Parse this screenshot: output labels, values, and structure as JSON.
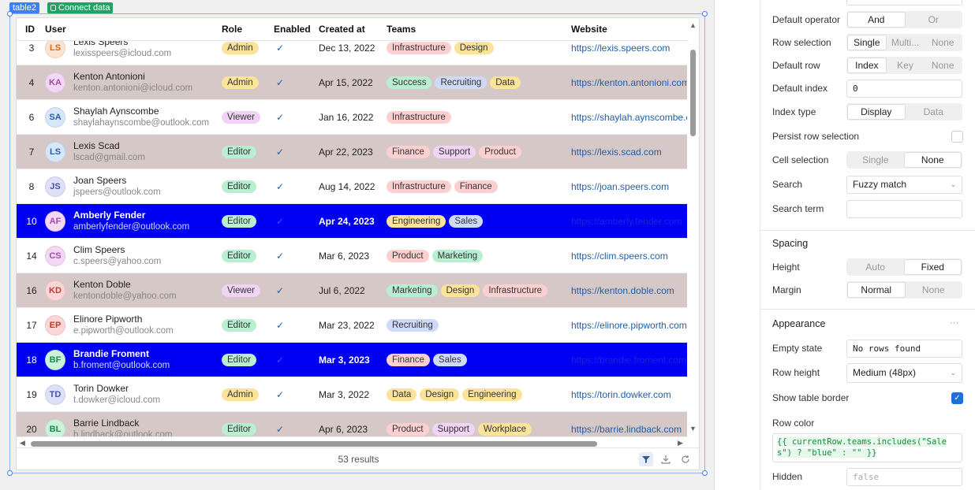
{
  "canvas": {
    "component_name": "table2",
    "connect_label": "Connect data",
    "table": {
      "columns": [
        "ID",
        "User",
        "Role",
        "Enabled",
        "Created at",
        "Teams",
        "Website"
      ],
      "rows": [
        {
          "id": "3",
          "initials": "LS",
          "avatar_color": "#fbe3cf",
          "avatar_text": "#d2691e",
          "name": "Lexis Speers",
          "email": "lexisspeers@icloud.com",
          "role": "Admin",
          "enabled": true,
          "created": "Dec 13, 2022",
          "teams": [
            "Infrastructure",
            "Design"
          ],
          "website": "https://lexis.speers.com",
          "row_style": "white"
        },
        {
          "id": "4",
          "initials": "KA",
          "avatar_color": "#f3d7f5",
          "avatar_text": "#a44aa8",
          "name": "Kenton Antonioni",
          "email": "kenton.antonioni@icloud.com",
          "role": "Admin",
          "enabled": true,
          "created": "Apr 15, 2022",
          "teams": [
            "Success",
            "Recruiting",
            "Data"
          ],
          "website": "https://kenton.antonioni.com",
          "row_style": "brown"
        },
        {
          "id": "6",
          "initials": "SA",
          "avatar_color": "#d6e6fb",
          "avatar_text": "#2a5ea8",
          "name": "Shaylah Aynscombe",
          "email": "shaylahaynscombe@outlook.com",
          "role": "Viewer",
          "enabled": true,
          "created": "Jan 16, 2022",
          "teams": [
            "Infrastructure"
          ],
          "website": "https://shaylah.aynscombe.com",
          "row_style": "white"
        },
        {
          "id": "7",
          "initials": "LS",
          "avatar_color": "#d6e6fb",
          "avatar_text": "#2a5ea8",
          "name": "Lexis Scad",
          "email": "lscad@gmail.com",
          "role": "Editor",
          "enabled": true,
          "created": "Apr 22, 2023",
          "teams": [
            "Finance",
            "Support",
            "Product"
          ],
          "website": "https://lexis.scad.com",
          "row_style": "brown"
        },
        {
          "id": "8",
          "initials": "JS",
          "avatar_color": "#dde0f7",
          "avatar_text": "#4a52a8",
          "name": "Joan Speers",
          "email": "jspeers@outlook.com",
          "role": "Editor",
          "enabled": true,
          "created": "Aug 14, 2022",
          "teams": [
            "Infrastructure",
            "Finance"
          ],
          "website": "https://joan.speers.com",
          "row_style": "white"
        },
        {
          "id": "10",
          "initials": "AF",
          "avatar_color": "#f3d7f5",
          "avatar_text": "#a44aa8",
          "name": "Amberly Fender",
          "email": "amberlyfender@outlook.com",
          "role": "Editor",
          "enabled": true,
          "created": "Apr 24, 2023",
          "teams": [
            "Engineering",
            "Sales"
          ],
          "website": "https://amberly.fender.com",
          "row_style": "blue"
        },
        {
          "id": "14",
          "initials": "CS",
          "avatar_color": "#f3d7f5",
          "avatar_text": "#a44aa8",
          "name": "Clim Speers",
          "email": "c.speers@yahoo.com",
          "role": "Editor",
          "enabled": true,
          "created": "Mar 6, 2023",
          "teams": [
            "Product",
            "Marketing"
          ],
          "website": "https://clim.speers.com",
          "row_style": "white"
        },
        {
          "id": "16",
          "initials": "KD",
          "avatar_color": "#fbd6d6",
          "avatar_text": "#c0392b",
          "name": "Kenton Doble",
          "email": "kentondoble@yahoo.com",
          "role": "Viewer",
          "enabled": true,
          "created": "Jul 6, 2022",
          "teams": [
            "Marketing",
            "Design",
            "Infrastructure"
          ],
          "website": "https://kenton.doble.com",
          "row_style": "brown"
        },
        {
          "id": "17",
          "initials": "EP",
          "avatar_color": "#fbd6d6",
          "avatar_text": "#c0392b",
          "name": "Elinore Pipworth",
          "email": "e.pipworth@outlook.com",
          "role": "Editor",
          "enabled": true,
          "created": "Mar 23, 2022",
          "teams": [
            "Recruiting"
          ],
          "website": "https://elinore.pipworth.com",
          "row_style": "white"
        },
        {
          "id": "18",
          "initials": "BF",
          "avatar_color": "#ccf2dc",
          "avatar_text": "#1e8a4c",
          "name": "Brandie Froment",
          "email": "b.froment@outlook.com",
          "role": "Editor",
          "enabled": true,
          "created": "Mar 3, 2023",
          "teams": [
            "Finance",
            "Sales"
          ],
          "website": "https://brandie.froment.com",
          "row_style": "blue"
        },
        {
          "id": "19",
          "initials": "TD",
          "avatar_color": "#dde0f7",
          "avatar_text": "#4a52a8",
          "name": "Torin Dowker",
          "email": "t.dowker@icloud.com",
          "role": "Admin",
          "enabled": true,
          "created": "Mar 3, 2022",
          "teams": [
            "Data",
            "Design",
            "Engineering"
          ],
          "website": "https://torin.dowker.com",
          "row_style": "white"
        },
        {
          "id": "20",
          "initials": "BL",
          "avatar_color": "#ccf2dc",
          "avatar_text": "#1e8a4c",
          "name": "Barrie Lindback",
          "email": "b.lindback@outlook.com",
          "role": "Editor",
          "enabled": true,
          "created": "Apr 6, 2023",
          "teams": [
            "Product",
            "Support",
            "Workplace"
          ],
          "website": "https://barrie.lindback.com",
          "row_style": "brown"
        }
      ],
      "results_label": "53 results",
      "role_colors": {
        "Admin": "#fbe39a",
        "Viewer": "#f1d3f5",
        "Editor": "#b9efd0"
      },
      "team_colors": {
        "Infrastructure": "#fcd0d0",
        "Design": "#fbe39a",
        "Success": "#b9efd0",
        "Recruiting": "#cfdaf8",
        "Data": "#fbe39a",
        "Finance": "#fcd0d0",
        "Support": "#f1d3f5",
        "Product": "#fcd0d0",
        "Engineering": "#fbe39a",
        "Sales": "#cfdaf8",
        "Marketing": "#b9efd0",
        "Workplace": "#fbe39a"
      }
    }
  },
  "panel": {
    "default_operator": {
      "label": "Default operator",
      "options": [
        "And",
        "Or"
      ],
      "selected": "And"
    },
    "row_selection": {
      "label": "Row selection",
      "options": [
        "Single",
        "Multi...",
        "None"
      ],
      "selected": "Single"
    },
    "default_row": {
      "label": "Default row",
      "options": [
        "Index",
        "Key",
        "None"
      ],
      "selected": "Index"
    },
    "default_index": {
      "label": "Default index",
      "value": "0"
    },
    "index_type": {
      "label": "Index type",
      "options": [
        "Display",
        "Data"
      ],
      "selected": "Display"
    },
    "persist_row_selection": {
      "label": "Persist row selection",
      "checked": false
    },
    "cell_selection": {
      "label": "Cell selection",
      "options": [
        "Single",
        "None"
      ],
      "selected": "None"
    },
    "search": {
      "label": "Search",
      "value": "Fuzzy match"
    },
    "search_term": {
      "label": "Search term",
      "value": ""
    },
    "spacing_title": "Spacing",
    "height": {
      "label": "Height",
      "options": [
        "Auto",
        "Fixed"
      ],
      "selected": "Fixed"
    },
    "margin": {
      "label": "Margin",
      "options": [
        "Normal",
        "None"
      ],
      "selected": "Normal"
    },
    "appearance_title": "Appearance",
    "appearance_more": "···",
    "empty_state": {
      "label": "Empty state",
      "value": "No rows found"
    },
    "row_height": {
      "label": "Row height",
      "value": "Medium (48px)"
    },
    "show_table_border": {
      "label": "Show table border",
      "checked": true
    },
    "row_color": {
      "label": "Row color",
      "code": "{{ currentRow.teams.includes(\"Sales\") ? \"blue\" : \"\" }}"
    },
    "hidden": {
      "label": "Hidden",
      "placeholder": "false"
    }
  }
}
